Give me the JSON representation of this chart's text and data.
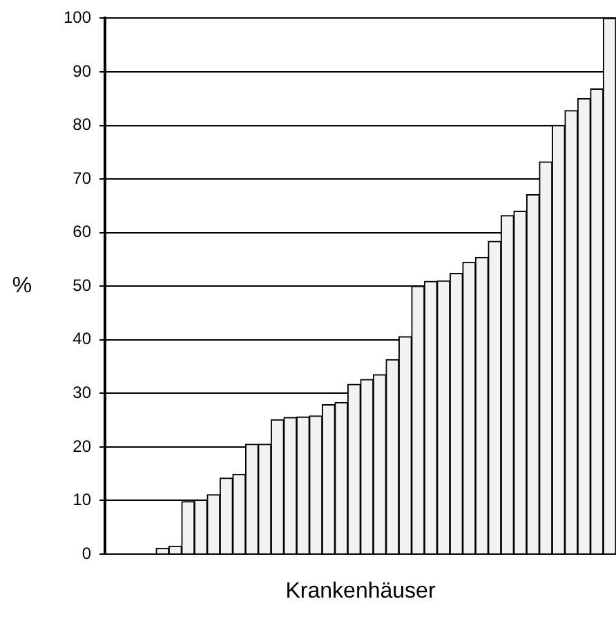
{
  "chart_data": {
    "type": "bar",
    "xlabel": "Krankenhäuser",
    "ylabel": "%",
    "categories": [
      null,
      null,
      null,
      null,
      null,
      null,
      null,
      null,
      null,
      null,
      null,
      null,
      null,
      null,
      null,
      null,
      null,
      null,
      null,
      null,
      null,
      null,
      null,
      null,
      null,
      null,
      null,
      null,
      null,
      null,
      null,
      null,
      null,
      null,
      null,
      null,
      null,
      null,
      null,
      null
    ],
    "values": [
      0,
      0,
      0,
      0,
      1.1,
      1.5,
      9.8,
      10.1,
      11.1,
      14.2,
      14.9,
      20.5,
      20.5,
      25.1,
      25.5,
      25.6,
      25.8,
      27.9,
      28.3,
      31.7,
      32.6,
      33.5,
      36.3,
      40.6,
      50,
      50.9,
      51,
      52.4,
      54.5,
      55.4,
      58.4,
      63.2,
      64,
      67.1,
      73.2,
      80,
      82.8,
      85,
      86.8,
      100
    ],
    "color": "#f2f2f2",
    "ylim": [
      0,
      100
    ],
    "yticks": [
      0,
      10,
      20,
      30,
      40,
      50,
      60,
      70,
      80,
      90,
      100
    ],
    "grid": "y"
  }
}
